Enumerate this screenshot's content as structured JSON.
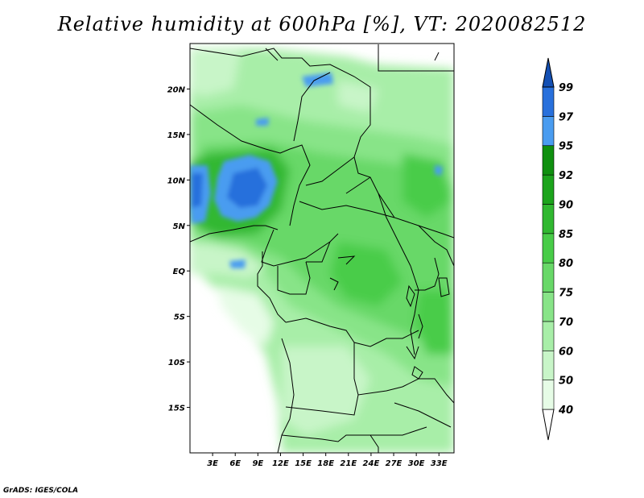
{
  "title": "Relative humidity at 600hPa [%], VT: 2020082512",
  "credit": "GrADS: IGES/COLA",
  "map": {
    "lon_range": [
      0,
      35
    ],
    "lat_range": [
      -20,
      25
    ],
    "lat_ticks": [
      {
        "value": 20,
        "label": "20N"
      },
      {
        "value": 15,
        "label": "15N"
      },
      {
        "value": 10,
        "label": "10N"
      },
      {
        "value": 5,
        "label": "5N"
      },
      {
        "value": 0,
        "label": "EQ"
      },
      {
        "value": -5,
        "label": "5S"
      },
      {
        "value": -10,
        "label": "10S"
      },
      {
        "value": -15,
        "label": "15S"
      }
    ],
    "lon_ticks": [
      {
        "value": 3,
        "label": "3E"
      },
      {
        "value": 6,
        "label": "6E"
      },
      {
        "value": 9,
        "label": "9E"
      },
      {
        "value": 12,
        "label": "12E"
      },
      {
        "value": 15,
        "label": "15E"
      },
      {
        "value": 18,
        "label": "18E"
      },
      {
        "value": 21,
        "label": "21E"
      },
      {
        "value": 24,
        "label": "24E"
      },
      {
        "value": 27,
        "label": "27E"
      },
      {
        "value": 30,
        "label": "30E"
      },
      {
        "value": 33,
        "label": "33E"
      }
    ]
  },
  "colorbar": {
    "levels": [
      "40",
      "50",
      "60",
      "70",
      "75",
      "80",
      "85",
      "90",
      "92",
      "95",
      "97",
      "99"
    ],
    "colors": [
      "#ffffff",
      "#e6fce6",
      "#c8f5c8",
      "#a8eea8",
      "#88e488",
      "#68d868",
      "#48cc48",
      "#30b830",
      "#1ca41c",
      "#0f900f",
      "#4a9cf0",
      "#2870dc",
      "#1450b4"
    ]
  }
}
